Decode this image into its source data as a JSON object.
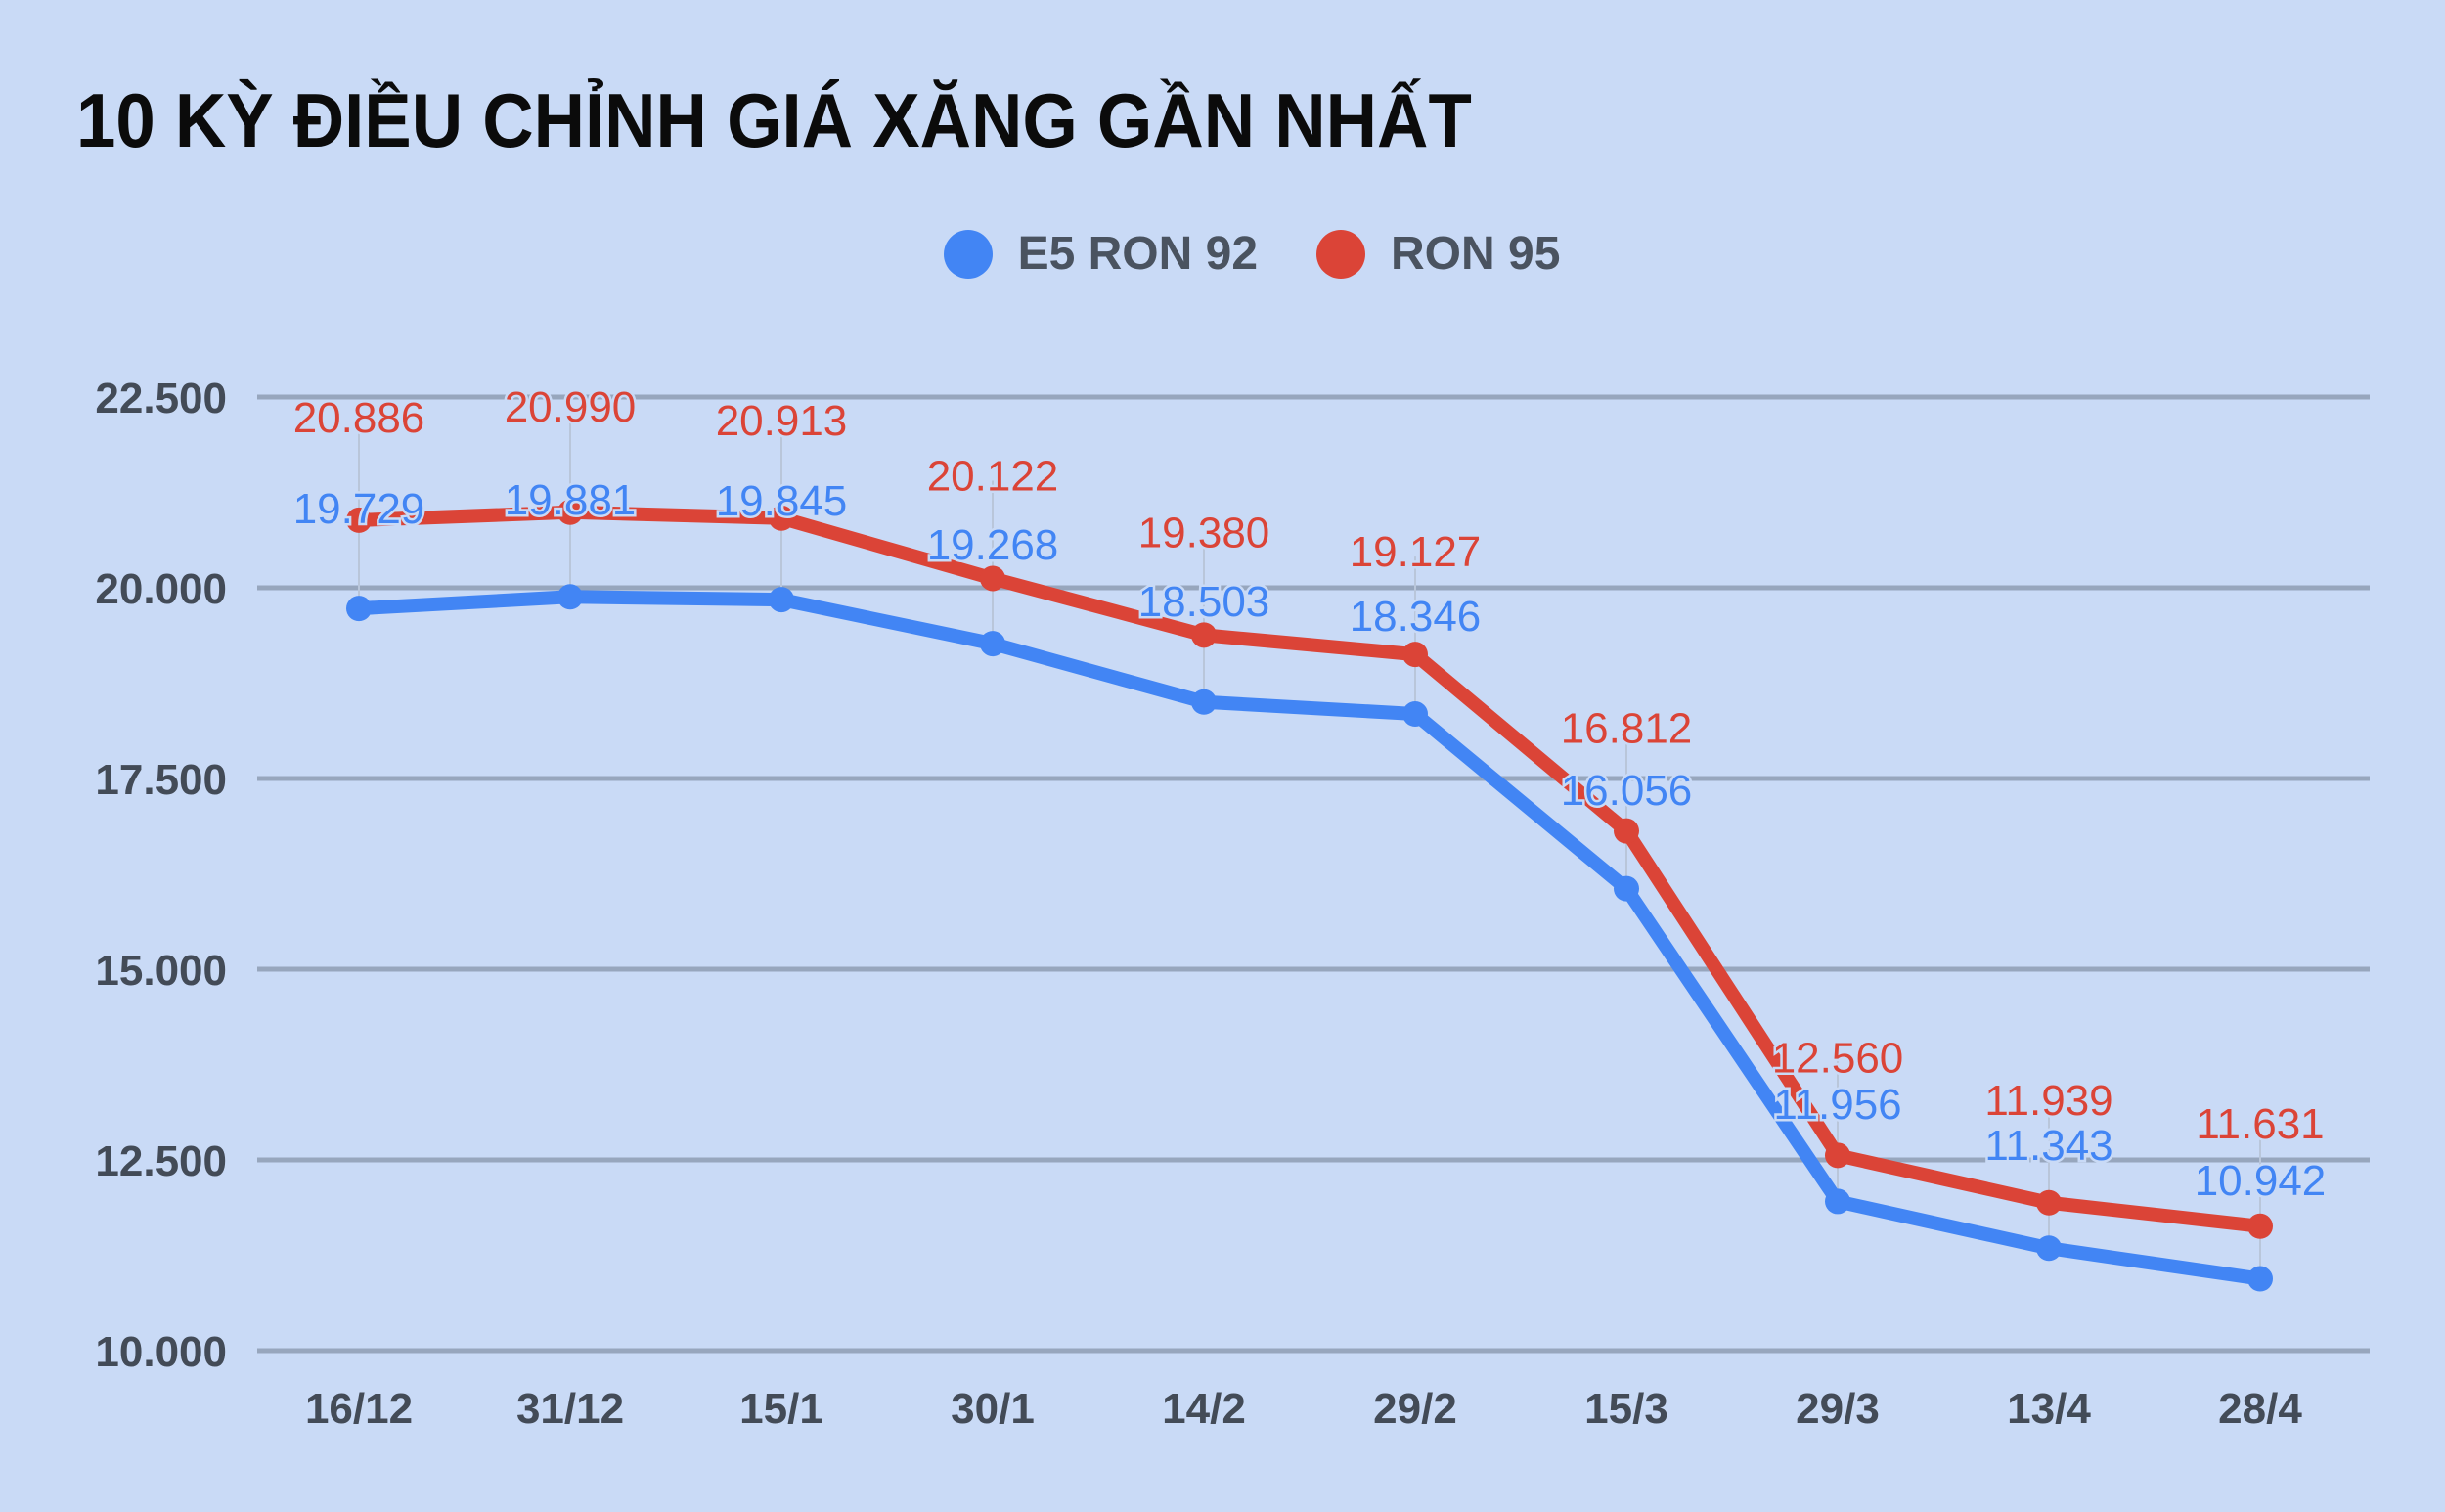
{
  "title": "10 KỲ ĐIỀU CHỈNH GIÁ XĂNG GẦN NHẤT",
  "legend": [
    {
      "label": "E5 RON 92",
      "color": "#4285f4"
    },
    {
      "label": "RON 95",
      "color": "#db4437"
    }
  ],
  "colors": {
    "background": "#c9daf6",
    "grid": "#97a6bd",
    "axis_text": "#434b57"
  },
  "chart_data": {
    "type": "line",
    "title": "10 KỲ ĐIỀU CHỈNH GIÁ XĂNG GẦN NHẤT",
    "xlabel": "",
    "ylabel": "",
    "categories": [
      "16/12",
      "31/12",
      "15/1",
      "30/1",
      "14/2",
      "29/2",
      "15/3",
      "29/3",
      "13/4",
      "28/4"
    ],
    "series": [
      {
        "name": "E5 RON 92",
        "color": "#4285f4",
        "values": [
          19729,
          19881,
          19845,
          19268,
          18503,
          18346,
          16056,
          11956,
          11343,
          10942
        ],
        "labels": [
          "19.729",
          "19.881",
          "19.845",
          "19.268",
          "18.503",
          "18.346",
          "16.056",
          "11.956",
          "11.343",
          "10.942"
        ]
      },
      {
        "name": "RON 95",
        "color": "#db4437",
        "values": [
          20886,
          20990,
          20913,
          20122,
          19380,
          19127,
          16812,
          12560,
          11939,
          11631
        ],
        "labels": [
          "20.886",
          "20.990",
          "20.913",
          "20.122",
          "19.380",
          "19.127",
          "16.812",
          "12.560",
          "11.939",
          "11.631"
        ]
      }
    ],
    "ylim": [
      10000,
      22500
    ],
    "yticks": [
      10000,
      12500,
      15000,
      17500,
      20000,
      22500
    ],
    "ytick_labels": [
      "10.000",
      "12.500",
      "15.000",
      "17.500",
      "20.000",
      "22.500"
    ],
    "grid": true,
    "legend_position": "top"
  }
}
